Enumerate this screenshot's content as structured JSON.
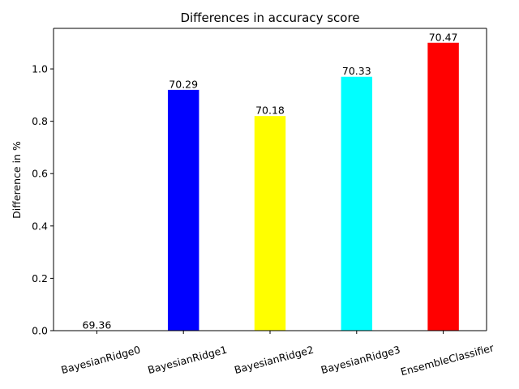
{
  "chart_data": {
    "type": "bar",
    "title": "Differences in accuracy score",
    "xlabel": "",
    "ylabel": "Difference in %",
    "categories": [
      "BayesianRidge0",
      "BayesianRidge1",
      "BayesianRidge2",
      "BayesianRidge3",
      "EnsembleClassifier"
    ],
    "values": [
      0.0,
      0.92,
      0.82,
      0.97,
      1.1
    ],
    "data_labels": [
      "69.36",
      "70.29",
      "70.18",
      "70.33",
      "70.47"
    ],
    "colors": [
      "#0000ff",
      "#0000ff",
      "#ffff00",
      "#00ffff",
      "#ff0000"
    ],
    "ylim": [
      0,
      1.155
    ],
    "yticks": [
      "0.0",
      "0.2",
      "0.4",
      "0.6",
      "0.8",
      "1.0"
    ],
    "grid": false,
    "legend": "none"
  }
}
